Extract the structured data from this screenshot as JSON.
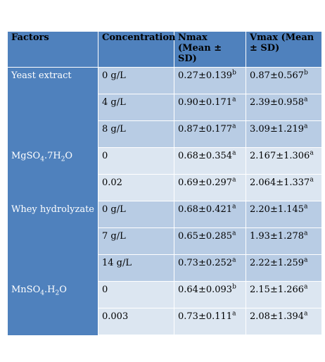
{
  "headers": {
    "factors": "Factors",
    "concentration": "Concentration",
    "nmax": "Nmax (Mean ± SD)",
    "vmax": "Vmax (Mean ± SD)"
  },
  "groups": [
    {
      "factor": "Yeast extract",
      "rows": [
        {
          "conc": "0 g/L",
          "nmax": "0.27±0.139",
          "nmax_sup": "b",
          "vmax": "0.87±0.567",
          "vmax_sup": "b"
        },
        {
          "conc": "4 g/L",
          "nmax": "0.90±0.171",
          "nmax_sup": "a",
          "vmax": "2.39±0.958",
          "vmax_sup": "a"
        },
        {
          "conc": "8 g/L",
          "nmax": "0.87±0.177",
          "nmax_sup": "a",
          "vmax": "3.09±1.219",
          "vmax_sup": "a"
        }
      ]
    },
    {
      "factor_parts": [
        "MgSO",
        "4",
        ".7H",
        "2",
        "O"
      ],
      "rows": [
        {
          "conc": "0",
          "nmax": "0.68±0.354",
          "nmax_sup": "a",
          "vmax": "2.167±1.306",
          "vmax_sup": "a"
        },
        {
          "conc": "0.02",
          "nmax": "0.69±0.297",
          "nmax_sup": "a",
          "vmax": "2.064±1.337",
          "vmax_sup": "a"
        }
      ]
    },
    {
      "factor": "Whey hydrolyzate",
      "rows": [
        {
          "conc": "0 g/L",
          "nmax": "0.68±0.421",
          "nmax_sup": "a",
          "vmax": "2.20±1.145",
          "vmax_sup": "a"
        },
        {
          "conc": "7 g/L",
          "nmax": "0.65±0.285",
          "nmax_sup": "a",
          "vmax": "1.93±1.278",
          "vmax_sup": "a"
        },
        {
          "conc": "14 g/L",
          "nmax": "0.73±0.252",
          "nmax_sup": "a",
          "vmax": "2.22±1.259",
          "vmax_sup": "a"
        }
      ]
    },
    {
      "factor_parts": [
        "MnSO",
        "4",
        ".H",
        "2",
        "O"
      ],
      "rows": [
        {
          "conc": "0",
          "nmax": "0.64±0.093",
          "nmax_sup": "b",
          "vmax": "2.15±1.266",
          "vmax_sup": "a"
        },
        {
          "conc": "0.003",
          "nmax": "0.73±0.111",
          "nmax_sup": "a",
          "vmax": "2.08±1.394",
          "vmax_sup": "a"
        }
      ]
    }
  ]
}
